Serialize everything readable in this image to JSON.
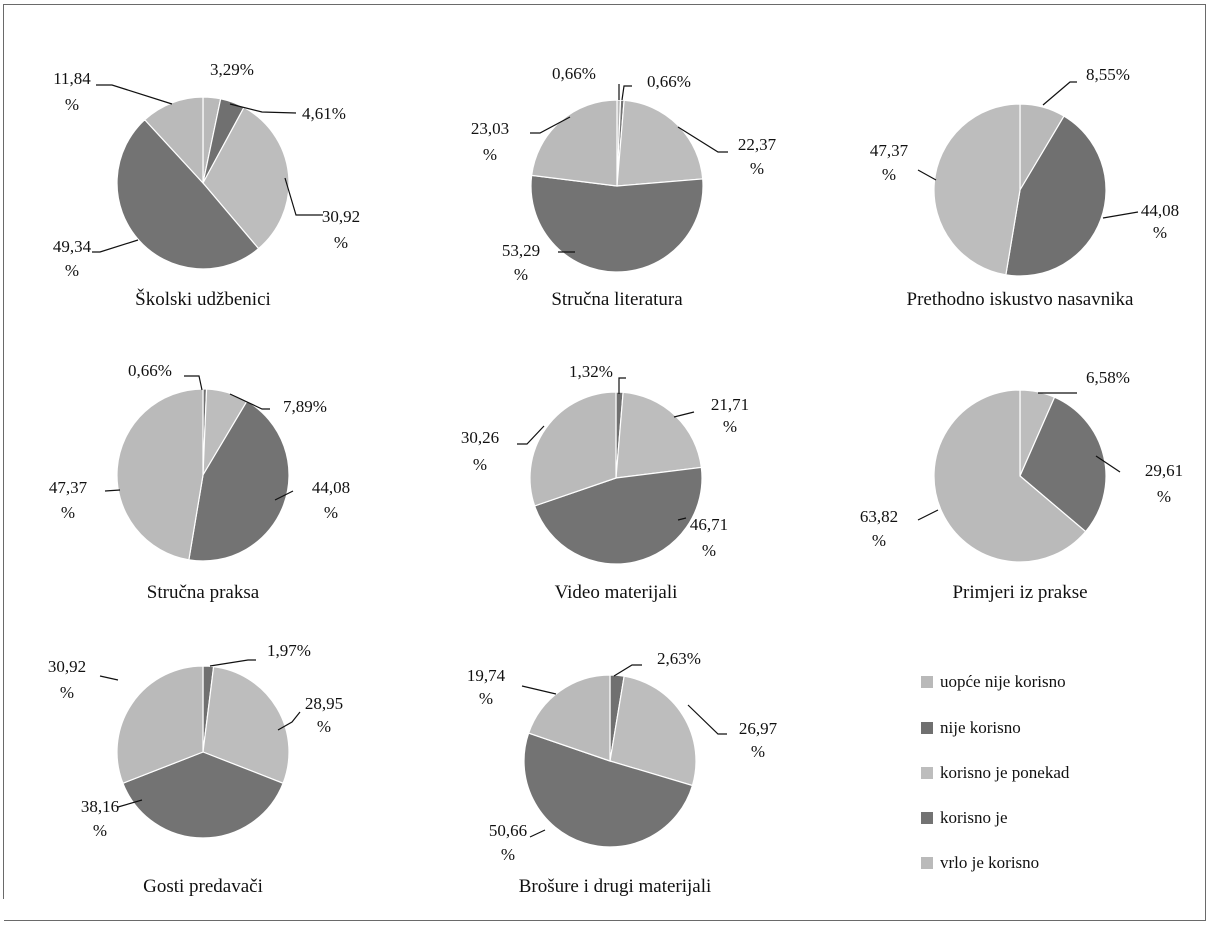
{
  "chart_data": {
    "type": "pie",
    "categories": [
      "uopće nije korisno",
      "nije korisno",
      "korisno je ponekad",
      "korisno je",
      "vrlo je korisno"
    ],
    "colors": [
      "#b9b9b9",
      "#707070",
      "#bdbdbd",
      "#737373",
      "#bababa"
    ],
    "legend_position": "bottom-right",
    "charts": [
      {
        "title": "Školski udžbenici",
        "values": [
          3.29,
          4.61,
          30.92,
          49.34,
          11.84
        ],
        "labels": [
          {
            "text": "3,29%"
          },
          {
            "text": "4,61%"
          },
          {
            "text": "30,92",
            "suffix": "%"
          },
          {
            "text": "49,34",
            "suffix": "%"
          },
          {
            "text": "11,84",
            "suffix": "%"
          }
        ]
      },
      {
        "title": "Stručna literatura",
        "values": [
          0.66,
          0.66,
          22.37,
          53.29,
          23.03
        ],
        "labels": [
          {
            "text": "0,66%"
          },
          {
            "text": "0,66%"
          },
          {
            "text": "22,37",
            "suffix": "%"
          },
          {
            "text": "53,29",
            "suffix": "%"
          },
          {
            "text": "23,03",
            "suffix": "%"
          }
        ]
      },
      {
        "title": "Prethodno iskustvo nasavnika",
        "values": [
          8.55,
          44.08,
          47.37
        ],
        "series_index": [
          0,
          1,
          2
        ],
        "labels": [
          {
            "text": "8,55%"
          },
          {
            "text": "44,08",
            "suffix": "%"
          },
          {
            "text": "47,37",
            "suffix": "%"
          }
        ]
      },
      {
        "title": "Stručna praksa",
        "values": [
          0.66,
          7.89,
          44.08,
          47.37
        ],
        "series_index": [
          1,
          2,
          3,
          4
        ],
        "labels": [
          {
            "text": "0,66%"
          },
          {
            "text": "7,89%"
          },
          {
            "text": "44,08",
            "suffix": "%"
          },
          {
            "text": "47,37",
            "suffix": "%"
          }
        ]
      },
      {
        "title": "Video materijali",
        "values": [
          1.32,
          21.71,
          46.71,
          30.26
        ],
        "series_index": [
          1,
          2,
          3,
          4
        ],
        "labels": [
          {
            "text": "1,32%"
          },
          {
            "text": "21,71",
            "suffix": "%"
          },
          {
            "text": "46,71",
            "suffix": "%"
          },
          {
            "text": "30,26",
            "suffix": "%"
          }
        ]
      },
      {
        "title": "Primjeri iz prakse",
        "values": [
          6.58,
          29.61,
          63.82
        ],
        "series_index": [
          2,
          3,
          4
        ],
        "labels": [
          {
            "text": "6,58%"
          },
          {
            "text": "29,61",
            "suffix": "%"
          },
          {
            "text": "63,82",
            "suffix": "%"
          }
        ]
      },
      {
        "title": "Gosti predavači",
        "values": [
          1.97,
          28.95,
          38.16,
          30.92
        ],
        "series_index": [
          1,
          2,
          3,
          4
        ],
        "labels": [
          {
            "text": "1,97%"
          },
          {
            "text": "28,95",
            "suffix": "%"
          },
          {
            "text": "38,16",
            "suffix": "%"
          },
          {
            "text": "30,92",
            "suffix": "%"
          }
        ]
      },
      {
        "title": "Brošure i drugi materijali",
        "values": [
          2.63,
          26.97,
          50.66,
          19.74
        ],
        "series_index": [
          1,
          2,
          3,
          4
        ],
        "labels": [
          {
            "text": "2,63%"
          },
          {
            "text": "26,97",
            "suffix": "%"
          },
          {
            "text": "50,66",
            "suffix": "%"
          },
          {
            "text": "19,74",
            "suffix": "%"
          }
        ]
      }
    ]
  }
}
